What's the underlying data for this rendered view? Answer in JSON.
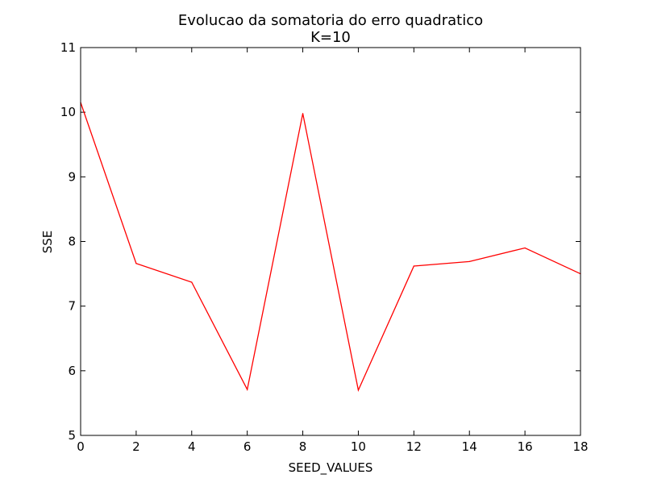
{
  "chart_data": {
    "type": "line",
    "title": "Evolucao da somatoria do erro quadratico",
    "subtitle": "K=10",
    "xlabel": "SEED_VALUES",
    "ylabel": "SSE",
    "xlim": [
      0,
      18
    ],
    "ylim": [
      5,
      11
    ],
    "xticks": [
      0,
      2,
      4,
      6,
      8,
      10,
      12,
      14,
      16,
      18
    ],
    "yticks": [
      5,
      6,
      7,
      8,
      9,
      10,
      11
    ],
    "grid": false,
    "legend": "none",
    "series": [
      {
        "color": "#ff0000",
        "x": [
          0,
          2,
          4,
          6,
          8,
          10,
          12,
          14,
          16,
          18
        ],
        "y": [
          10.15,
          7.66,
          7.37,
          5.71,
          9.98,
          5.7,
          7.62,
          7.69,
          7.9,
          7.5
        ]
      }
    ]
  }
}
